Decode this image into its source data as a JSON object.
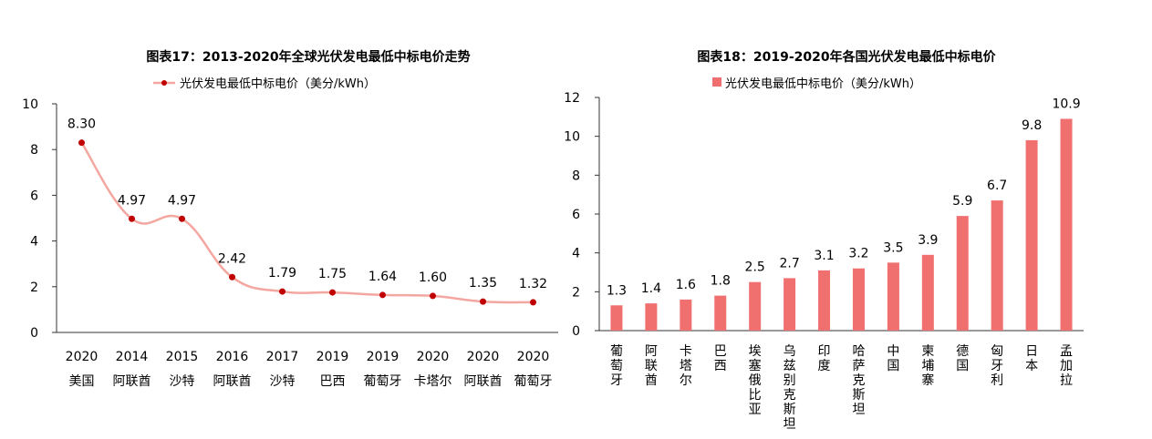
{
  "chart_data": [
    {
      "type": "line",
      "title": "图表17：2013-2020年全球光伏发电最低中标电价走势",
      "legend": "光伏发电最低中标电价（美分/kWh）",
      "legend_position": "top-center",
      "color": "#f4a6a0",
      "marker_color": "#c00000",
      "ylim": [
        0,
        10
      ],
      "yticks": [
        "0",
        "2",
        "4",
        "6",
        "8",
        "10"
      ],
      "categories": [
        {
          "year": "2020",
          "country": "美国"
        },
        {
          "year": "2014",
          "country": "阿联酋"
        },
        {
          "year": "2015",
          "country": "沙特"
        },
        {
          "year": "2016",
          "country": "阿联酋"
        },
        {
          "year": "2017",
          "country": "沙特"
        },
        {
          "year": "2019",
          "country": "巴西"
        },
        {
          "year": "2019",
          "country": "葡萄牙"
        },
        {
          "year": "2020",
          "country": "卡塔尔"
        },
        {
          "year": "2020",
          "country": "阿联酋"
        },
        {
          "year": "2020",
          "country": "葡萄牙"
        }
      ],
      "values": [
        8.3,
        4.97,
        4.97,
        2.42,
        1.79,
        1.75,
        1.64,
        1.6,
        1.35,
        1.32
      ],
      "labels": [
        "8.30",
        "4.97",
        "4.97",
        "2.42",
        "1.79",
        "1.75",
        "1.64",
        "1.60",
        "1.35",
        "1.32"
      ],
      "grid": false
    },
    {
      "type": "bar",
      "title": "图表18：2019-2020年各国光伏发电最低中标电价",
      "legend": "光伏发电最低中标电价（美分/kWh）",
      "legend_position": "top-center",
      "color": "#f07070",
      "ylim": [
        0,
        12
      ],
      "yticks": [
        "0",
        "2",
        "4",
        "6",
        "8",
        "10",
        "12"
      ],
      "categories": [
        "葡萄牙",
        "阿联酋",
        "卡塔尔",
        "巴西",
        "埃塞俄比亚",
        "乌兹别克斯坦",
        "印度",
        "哈萨克斯坦",
        "中国",
        "柬埔寨",
        "德国",
        "匈牙利",
        "日本",
        "孟加拉"
      ],
      "values": [
        1.3,
        1.4,
        1.6,
        1.8,
        2.5,
        2.7,
        3.1,
        3.2,
        3.5,
        3.9,
        5.9,
        6.7,
        9.8,
        10.9
      ],
      "labels": [
        "1.3",
        "1.4",
        "1.6",
        "1.8",
        "2.5",
        "2.7",
        "3.1",
        "3.2",
        "3.5",
        "3.9",
        "5.9",
        "6.7",
        "9.8",
        "10.9"
      ],
      "grid": false
    }
  ]
}
